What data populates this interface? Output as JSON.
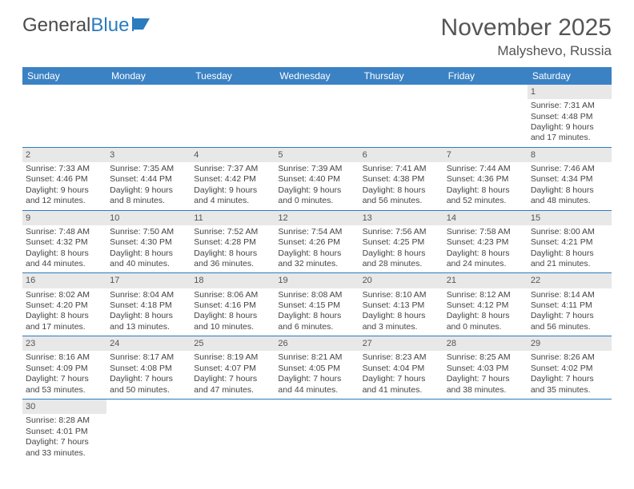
{
  "logo": {
    "part1": "General",
    "part2": "Blue"
  },
  "title": "November 2025",
  "location": "Malyshevo, Russia",
  "daysOfWeek": [
    "Sunday",
    "Monday",
    "Tuesday",
    "Wednesday",
    "Thursday",
    "Friday",
    "Saturday"
  ],
  "colors": {
    "headerBg": "#3b82c4",
    "headerText": "#ffffff",
    "dayNumBg": "#e8e8e8",
    "borderColor": "#2b7bbf",
    "logoBlue": "#2b7bbf",
    "textColor": "#444444"
  },
  "weeks": [
    [
      null,
      null,
      null,
      null,
      null,
      null,
      {
        "n": "1",
        "sr": "Sunrise: 7:31 AM",
        "ss": "Sunset: 4:48 PM",
        "dl": "Daylight: 9 hours and 17 minutes."
      }
    ],
    [
      {
        "n": "2",
        "sr": "Sunrise: 7:33 AM",
        "ss": "Sunset: 4:46 PM",
        "dl": "Daylight: 9 hours and 12 minutes."
      },
      {
        "n": "3",
        "sr": "Sunrise: 7:35 AM",
        "ss": "Sunset: 4:44 PM",
        "dl": "Daylight: 9 hours and 8 minutes."
      },
      {
        "n": "4",
        "sr": "Sunrise: 7:37 AM",
        "ss": "Sunset: 4:42 PM",
        "dl": "Daylight: 9 hours and 4 minutes."
      },
      {
        "n": "5",
        "sr": "Sunrise: 7:39 AM",
        "ss": "Sunset: 4:40 PM",
        "dl": "Daylight: 9 hours and 0 minutes."
      },
      {
        "n": "6",
        "sr": "Sunrise: 7:41 AM",
        "ss": "Sunset: 4:38 PM",
        "dl": "Daylight: 8 hours and 56 minutes."
      },
      {
        "n": "7",
        "sr": "Sunrise: 7:44 AM",
        "ss": "Sunset: 4:36 PM",
        "dl": "Daylight: 8 hours and 52 minutes."
      },
      {
        "n": "8",
        "sr": "Sunrise: 7:46 AM",
        "ss": "Sunset: 4:34 PM",
        "dl": "Daylight: 8 hours and 48 minutes."
      }
    ],
    [
      {
        "n": "9",
        "sr": "Sunrise: 7:48 AM",
        "ss": "Sunset: 4:32 PM",
        "dl": "Daylight: 8 hours and 44 minutes."
      },
      {
        "n": "10",
        "sr": "Sunrise: 7:50 AM",
        "ss": "Sunset: 4:30 PM",
        "dl": "Daylight: 8 hours and 40 minutes."
      },
      {
        "n": "11",
        "sr": "Sunrise: 7:52 AM",
        "ss": "Sunset: 4:28 PM",
        "dl": "Daylight: 8 hours and 36 minutes."
      },
      {
        "n": "12",
        "sr": "Sunrise: 7:54 AM",
        "ss": "Sunset: 4:26 PM",
        "dl": "Daylight: 8 hours and 32 minutes."
      },
      {
        "n": "13",
        "sr": "Sunrise: 7:56 AM",
        "ss": "Sunset: 4:25 PM",
        "dl": "Daylight: 8 hours and 28 minutes."
      },
      {
        "n": "14",
        "sr": "Sunrise: 7:58 AM",
        "ss": "Sunset: 4:23 PM",
        "dl": "Daylight: 8 hours and 24 minutes."
      },
      {
        "n": "15",
        "sr": "Sunrise: 8:00 AM",
        "ss": "Sunset: 4:21 PM",
        "dl": "Daylight: 8 hours and 21 minutes."
      }
    ],
    [
      {
        "n": "16",
        "sr": "Sunrise: 8:02 AM",
        "ss": "Sunset: 4:20 PM",
        "dl": "Daylight: 8 hours and 17 minutes."
      },
      {
        "n": "17",
        "sr": "Sunrise: 8:04 AM",
        "ss": "Sunset: 4:18 PM",
        "dl": "Daylight: 8 hours and 13 minutes."
      },
      {
        "n": "18",
        "sr": "Sunrise: 8:06 AM",
        "ss": "Sunset: 4:16 PM",
        "dl": "Daylight: 8 hours and 10 minutes."
      },
      {
        "n": "19",
        "sr": "Sunrise: 8:08 AM",
        "ss": "Sunset: 4:15 PM",
        "dl": "Daylight: 8 hours and 6 minutes."
      },
      {
        "n": "20",
        "sr": "Sunrise: 8:10 AM",
        "ss": "Sunset: 4:13 PM",
        "dl": "Daylight: 8 hours and 3 minutes."
      },
      {
        "n": "21",
        "sr": "Sunrise: 8:12 AM",
        "ss": "Sunset: 4:12 PM",
        "dl": "Daylight: 8 hours and 0 minutes."
      },
      {
        "n": "22",
        "sr": "Sunrise: 8:14 AM",
        "ss": "Sunset: 4:11 PM",
        "dl": "Daylight: 7 hours and 56 minutes."
      }
    ],
    [
      {
        "n": "23",
        "sr": "Sunrise: 8:16 AM",
        "ss": "Sunset: 4:09 PM",
        "dl": "Daylight: 7 hours and 53 minutes."
      },
      {
        "n": "24",
        "sr": "Sunrise: 8:17 AM",
        "ss": "Sunset: 4:08 PM",
        "dl": "Daylight: 7 hours and 50 minutes."
      },
      {
        "n": "25",
        "sr": "Sunrise: 8:19 AM",
        "ss": "Sunset: 4:07 PM",
        "dl": "Daylight: 7 hours and 47 minutes."
      },
      {
        "n": "26",
        "sr": "Sunrise: 8:21 AM",
        "ss": "Sunset: 4:05 PM",
        "dl": "Daylight: 7 hours and 44 minutes."
      },
      {
        "n": "27",
        "sr": "Sunrise: 8:23 AM",
        "ss": "Sunset: 4:04 PM",
        "dl": "Daylight: 7 hours and 41 minutes."
      },
      {
        "n": "28",
        "sr": "Sunrise: 8:25 AM",
        "ss": "Sunset: 4:03 PM",
        "dl": "Daylight: 7 hours and 38 minutes."
      },
      {
        "n": "29",
        "sr": "Sunrise: 8:26 AM",
        "ss": "Sunset: 4:02 PM",
        "dl": "Daylight: 7 hours and 35 minutes."
      }
    ],
    [
      {
        "n": "30",
        "sr": "Sunrise: 8:28 AM",
        "ss": "Sunset: 4:01 PM",
        "dl": "Daylight: 7 hours and 33 minutes."
      },
      null,
      null,
      null,
      null,
      null,
      null
    ]
  ]
}
